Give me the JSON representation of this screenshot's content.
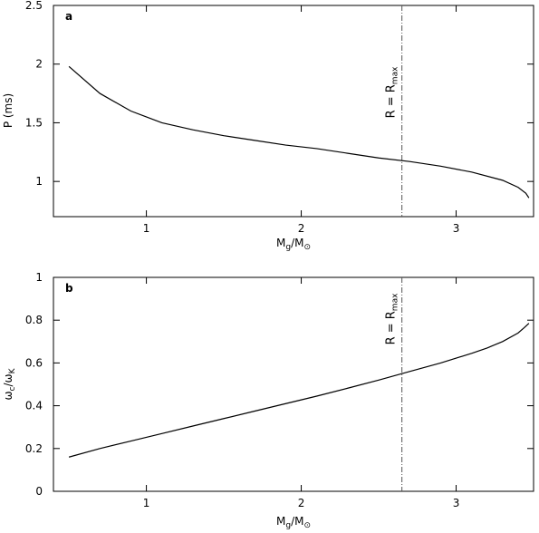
{
  "chart_data": [
    {
      "type": "line",
      "panel": "a",
      "ylabel": "P (ms)",
      "xlabel": "M_g/M_⊙",
      "xlim": [
        0.4,
        3.5
      ],
      "ylim": [
        0.7,
        2.5
      ],
      "xticks": [
        1,
        2,
        3
      ],
      "yticks": [
        1,
        1.5,
        2,
        2.5
      ],
      "yticklabels": [
        "1",
        "1.5",
        "2",
        "2.5"
      ],
      "vline": {
        "x": 2.65,
        "label": "R = R",
        "label_sub": "max",
        "style": "dash-dot",
        "color": "#555555"
      },
      "series": [
        {
          "x": [
            0.5,
            0.7,
            0.9,
            1.1,
            1.3,
            1.5,
            1.7,
            1.9,
            2.1,
            2.3,
            2.5,
            2.7,
            2.9,
            3.1,
            3.3,
            3.4,
            3.45,
            3.47
          ],
          "y": [
            1.98,
            1.75,
            1.6,
            1.5,
            1.44,
            1.39,
            1.35,
            1.31,
            1.28,
            1.24,
            1.2,
            1.17,
            1.13,
            1.08,
            1.01,
            0.95,
            0.9,
            0.86
          ],
          "color": "#000000"
        }
      ]
    },
    {
      "type": "line",
      "panel": "b",
      "ylabel": "ω_c/ω_K",
      "xlabel": "M_g/M_⊙",
      "xlim": [
        0.4,
        3.5
      ],
      "ylim": [
        0,
        1
      ],
      "xticks": [
        1,
        2,
        3
      ],
      "yticks": [
        0,
        0.2,
        0.4,
        0.6,
        0.8,
        1
      ],
      "yticklabels": [
        "0",
        "0.2",
        "0.4",
        "0.6",
        "0.8",
        "1"
      ],
      "vline": {
        "x": 2.65,
        "label": "R = R",
        "label_sub": "max",
        "style": "dash-dot",
        "color": "#555555"
      },
      "series": [
        {
          "x": [
            0.5,
            0.7,
            0.9,
            1.1,
            1.3,
            1.5,
            1.7,
            1.9,
            2.1,
            2.3,
            2.5,
            2.7,
            2.9,
            3.1,
            3.2,
            3.3,
            3.4,
            3.44,
            3.47
          ],
          "y": [
            0.16,
            0.2,
            0.235,
            0.27,
            0.305,
            0.34,
            0.375,
            0.41,
            0.445,
            0.482,
            0.52,
            0.56,
            0.6,
            0.645,
            0.67,
            0.7,
            0.74,
            0.765,
            0.785
          ],
          "color": "#000000"
        }
      ]
    }
  ]
}
